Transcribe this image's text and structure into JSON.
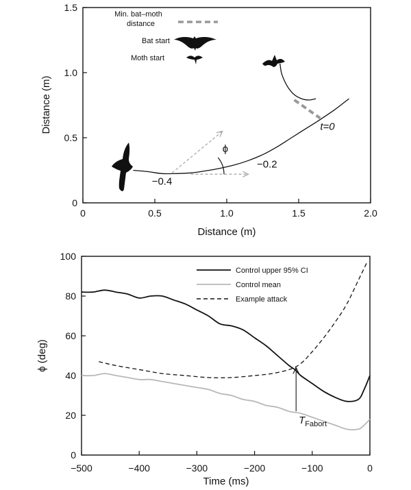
{
  "chart_data": [
    {
      "type": "line",
      "xlabel": "Distance (m)",
      "ylabel": "Distance (m)",
      "xlim": [
        0,
        2.0
      ],
      "ylim": [
        0,
        1.5
      ],
      "xticks": [
        0,
        0.5,
        1.0,
        1.5,
        2.0
      ],
      "xtick_labels": [
        "0",
        "0.5",
        "1.0",
        "1.5",
        "2.0"
      ],
      "yticks": [
        0,
        0.5,
        1.0,
        1.5
      ],
      "ytick_labels": [
        "0",
        "0.5",
        "1.0",
        "1.5"
      ],
      "legend": [
        {
          "label": "Min. bat–moth distance",
          "marker": "dashed-line",
          "color": "#999999"
        },
        {
          "label": "Bat start",
          "marker": "bat-silhouette",
          "color": "#111111"
        },
        {
          "label": "Moth start",
          "marker": "moth-silhouette",
          "color": "#111111"
        }
      ],
      "series": [
        {
          "role": "bat-path",
          "color": "#111111",
          "x": [
            0.35,
            0.45,
            0.55,
            0.65,
            0.75,
            0.85,
            0.95,
            1.05,
            1.15,
            1.25,
            1.35,
            1.45,
            1.55,
            1.65,
            1.75,
            1.85
          ],
          "y": [
            0.25,
            0.24,
            0.225,
            0.225,
            0.23,
            0.245,
            0.265,
            0.29,
            0.325,
            0.37,
            0.43,
            0.5,
            0.57,
            0.64,
            0.715,
            0.8
          ]
        },
        {
          "role": "moth-path",
          "color": "#111111",
          "x": [
            1.37,
            1.38,
            1.4,
            1.43,
            1.47,
            1.52,
            1.57,
            1.62
          ],
          "y": [
            1.07,
            1.0,
            0.94,
            0.88,
            0.83,
            0.8,
            0.79,
            0.8
          ]
        }
      ],
      "min_distance_segment": {
        "x": [
          1.47,
          1.65
        ],
        "y": [
          0.79,
          0.65
        ]
      },
      "velocity_arrow": {
        "from": [
          0.62,
          0.23
        ],
        "to": [
          0.97,
          0.55
        ]
      },
      "reference_arrow": {
        "from": [
          0.75,
          0.22
        ],
        "to": [
          1.15,
          0.22
        ]
      },
      "annotations": [
        {
          "text": "t=0",
          "x": 1.7,
          "y": 0.56
        },
        {
          "text": "−0.2",
          "x": 1.28,
          "y": 0.27
        },
        {
          "text": "−0.4",
          "x": 0.55,
          "y": 0.14
        },
        {
          "text": "ϕ",
          "x": 0.99,
          "y": 0.39
        }
      ],
      "bat_start_position": [
        0.27,
        0.28
      ],
      "moth_start_position": [
        1.36,
        1.1
      ]
    },
    {
      "type": "line",
      "xlabel": "Time (ms)",
      "ylabel": "ϕ (deg)",
      "xlim": [
        -500,
        0
      ],
      "ylim": [
        0,
        100
      ],
      "xticks": [
        -500,
        -400,
        -300,
        -200,
        -100,
        0
      ],
      "xtick_labels": [
        "−500",
        "−400",
        "−300",
        "−200",
        "−100",
        "0"
      ],
      "yticks": [
        0,
        20,
        40,
        60,
        80,
        100
      ],
      "ytick_labels": [
        "0",
        "20",
        "40",
        "60",
        "80",
        "100"
      ],
      "legend_position": "top-right",
      "series": [
        {
          "name": "Control upper 95% CI",
          "color": "#111111",
          "style": "solid",
          "x": [
            -500,
            -480,
            -460,
            -440,
            -420,
            -400,
            -380,
            -360,
            -340,
            -320,
            -300,
            -280,
            -260,
            -240,
            -220,
            -200,
            -180,
            -160,
            -140,
            -130,
            -120,
            -100,
            -80,
            -60,
            -40,
            -20,
            -10,
            0
          ],
          "y": [
            82,
            82,
            83,
            82,
            81,
            79,
            80,
            80,
            78,
            76,
            73,
            70,
            66,
            65,
            63,
            59,
            55,
            50,
            45,
            43,
            40,
            36,
            32,
            29,
            27,
            28,
            33,
            40
          ]
        },
        {
          "name": "Control mean",
          "color": "#b8b8b8",
          "style": "solid",
          "x": [
            -500,
            -480,
            -460,
            -440,
            -420,
            -400,
            -380,
            -360,
            -340,
            -320,
            -300,
            -280,
            -260,
            -240,
            -220,
            -200,
            -180,
            -160,
            -140,
            -120,
            -100,
            -80,
            -60,
            -40,
            -20,
            -10,
            0
          ],
          "y": [
            40,
            40,
            41,
            40,
            39,
            38,
            38,
            37,
            36,
            35,
            34,
            33,
            31,
            30,
            28,
            27,
            25,
            24,
            22,
            21,
            19,
            17,
            15,
            13,
            13,
            15,
            18
          ]
        },
        {
          "name": "Example attack",
          "color": "#111111",
          "style": "dashed",
          "x": [
            -470,
            -440,
            -400,
            -360,
            -320,
            -280,
            -240,
            -200,
            -170,
            -140,
            -120,
            -100,
            -80,
            -60,
            -40,
            -20,
            -5
          ],
          "y": [
            47,
            45,
            43,
            41,
            40,
            39,
            39,
            40,
            41,
            43,
            46,
            52,
            59,
            67,
            76,
            88,
            97
          ]
        }
      ],
      "annotations": [
        {
          "text": "T",
          "subscript": "Fabort",
          "x": -127,
          "y": 22
        }
      ],
      "abort_arrow": {
        "x": -128,
        "from_y": 22,
        "to_y": 44
      }
    }
  ]
}
